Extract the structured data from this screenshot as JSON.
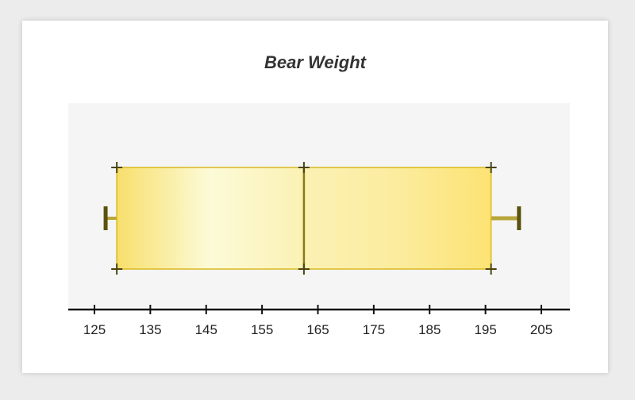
{
  "chart_data": {
    "type": "boxplot",
    "title": "Bear Weight",
    "xlabel": "",
    "ylabel": "",
    "xlim": [
      120,
      212
    ],
    "ticks": [
      125,
      135,
      145,
      155,
      165,
      175,
      185,
      195,
      205
    ],
    "min": 127,
    "q1": 129,
    "median": 162.5,
    "q3": 196,
    "max": 201,
    "box_color": "#fbe681",
    "box_border": "#d9b820",
    "marker_color": "#4b4510",
    "plot_background": "#f5f5f5"
  }
}
